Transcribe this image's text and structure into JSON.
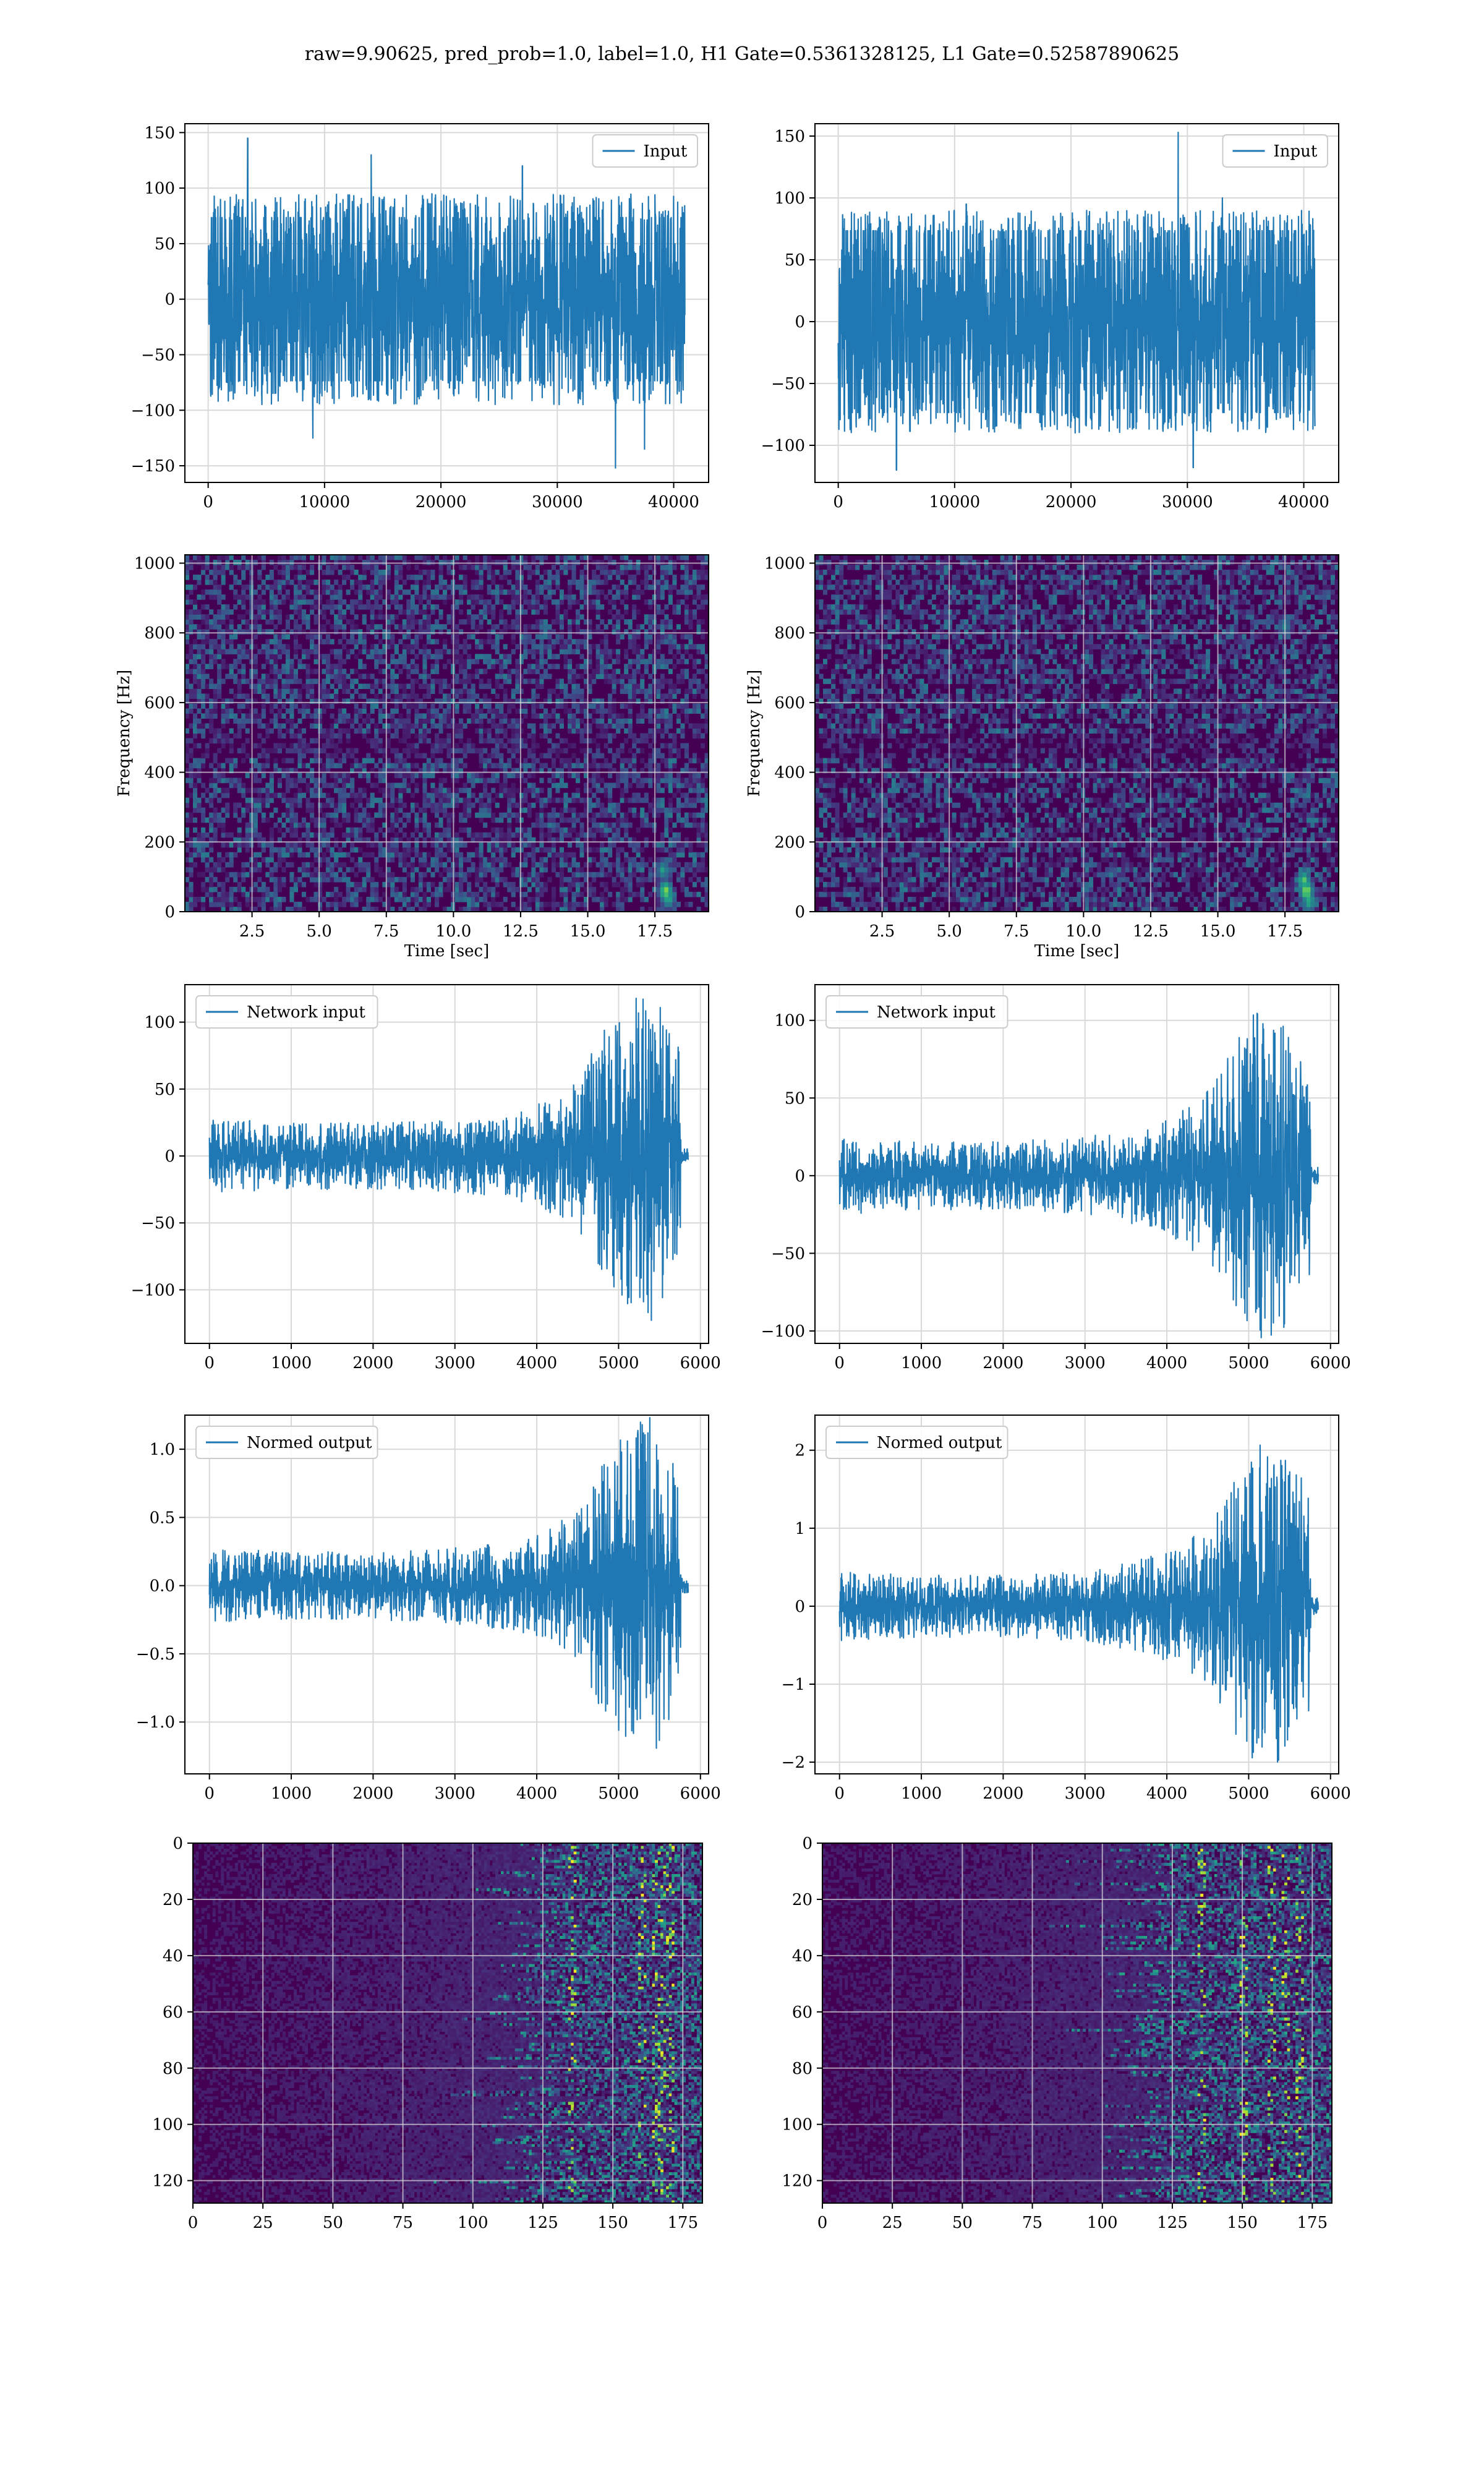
{
  "suptitle": "raw=9.90625, pred_prob=1.0, label=1.0, H1 Gate=0.5361328125, L1 Gate=0.52587890625",
  "colors": {
    "series": "#1f77b4",
    "grid": "#d9d9d9",
    "axes": "#000000",
    "viridis_low": "#440154",
    "viridis_mid": "#21918c",
    "viridis_high": "#fde725"
  },
  "chart_data": [
    {
      "id": "h1-input",
      "type": "line",
      "legend": [
        "Input"
      ],
      "legend_position": "upper right",
      "grid": true,
      "xlim": [
        -2000,
        43000
      ],
      "ylim": [
        -165,
        158
      ],
      "xticks": [
        0,
        10000,
        20000,
        30000,
        40000
      ],
      "xticklabels": [
        "0",
        "10000",
        "20000",
        "30000",
        "40000"
      ],
      "yticks": [
        -150,
        -100,
        -50,
        0,
        50,
        100,
        150
      ],
      "yticklabels": [
        "−150",
        "−100",
        "−50",
        "0",
        "50",
        "100",
        "150"
      ],
      "series": [
        {
          "name": "Input",
          "x_range": [
            0,
            40960
          ],
          "core_amplitude": 70,
          "envelope": [
            [
              0,
              95
            ],
            [
              20480,
              95
            ],
            [
              40960,
              95
            ]
          ],
          "spikes": [
            [
              3400,
              145
            ],
            [
              14000,
              130
            ],
            [
              35000,
              -152
            ],
            [
              37500,
              -135
            ],
            [
              9000,
              -125
            ],
            [
              27000,
              120
            ]
          ]
        }
      ]
    },
    {
      "id": "l1-input",
      "type": "line",
      "legend": [
        "Input"
      ],
      "legend_position": "upper right",
      "grid": true,
      "xlim": [
        -2000,
        43000
      ],
      "ylim": [
        -130,
        160
      ],
      "xticks": [
        0,
        10000,
        20000,
        30000,
        40000
      ],
      "xticklabels": [
        "0",
        "10000",
        "20000",
        "30000",
        "40000"
      ],
      "yticks": [
        -100,
        -50,
        0,
        50,
        100,
        150
      ],
      "yticklabels": [
        "−100",
        "−50",
        "0",
        "50",
        "100",
        "150"
      ],
      "series": [
        {
          "name": "Input",
          "x_range": [
            0,
            40960
          ],
          "core_amplitude": 70,
          "envelope": [
            [
              0,
              90
            ],
            [
              20480,
              90
            ],
            [
              40960,
              90
            ]
          ],
          "spikes": [
            [
              29200,
              153
            ],
            [
              5000,
              -120
            ],
            [
              30500,
              -118
            ],
            [
              33000,
              100
            ],
            [
              11000,
              95
            ]
          ]
        }
      ]
    },
    {
      "id": "h1-spectrogram",
      "type": "heatmap",
      "grid": true,
      "xlabel": "Time [sec]",
      "ylabel": "Frequency [Hz]",
      "xlim": [
        0,
        19.5
      ],
      "ylim": [
        0,
        1024
      ],
      "xticks": [
        2.5,
        5.0,
        7.5,
        10.0,
        12.5,
        15.0,
        17.5
      ],
      "xticklabels": [
        "2.5",
        "5.0",
        "7.5",
        "10.0",
        "12.5",
        "15.0",
        "17.5"
      ],
      "yticks": [
        0,
        200,
        400,
        600,
        800,
        1000
      ],
      "yticklabels": [
        "0",
        "200",
        "400",
        "600",
        "800",
        "1000"
      ],
      "colormap": "viridis",
      "hot_spots": [
        [
          17.9,
          60,
          0.9
        ],
        [
          17.8,
          120,
          0.6
        ],
        [
          18.0,
          40,
          0.7
        ]
      ]
    },
    {
      "id": "l1-spectrogram",
      "type": "heatmap",
      "grid": true,
      "xlabel": "Time [sec]",
      "ylabel": "Frequency [Hz]",
      "xlim": [
        0,
        19.5
      ],
      "ylim": [
        0,
        1024
      ],
      "xticks": [
        2.5,
        5.0,
        7.5,
        10.0,
        12.5,
        15.0,
        17.5
      ],
      "xticklabels": [
        "2.5",
        "5.0",
        "7.5",
        "10.0",
        "12.5",
        "15.0",
        "17.5"
      ],
      "yticks": [
        0,
        200,
        400,
        600,
        800,
        1000
      ],
      "yticklabels": [
        "0",
        "200",
        "400",
        "600",
        "800",
        "1000"
      ],
      "colormap": "viridis",
      "hot_spots": [
        [
          18.3,
          60,
          0.95
        ],
        [
          18.2,
          90,
          0.8
        ],
        [
          18.4,
          30,
          0.7
        ],
        [
          17.5,
          820,
          0.5
        ]
      ]
    },
    {
      "id": "h1-network-input",
      "type": "line",
      "legend": [
        "Network input"
      ],
      "legend_position": "upper left",
      "grid": true,
      "xlim": [
        -300,
        6100
      ],
      "ylim": [
        -140,
        128
      ],
      "xticks": [
        0,
        1000,
        2000,
        3000,
        4000,
        5000,
        6000
      ],
      "xticklabels": [
        "0",
        "1000",
        "2000",
        "3000",
        "4000",
        "5000",
        "6000"
      ],
      "yticks": [
        -100,
        -50,
        0,
        50,
        100
      ],
      "yticklabels": [
        "−100",
        "−50",
        "0",
        "50",
        "100"
      ],
      "series": [
        {
          "name": "Network input",
          "x_range": [
            0,
            5850
          ],
          "end_active": 5760,
          "tail_amplitude": 5,
          "core_ratio": 0.55,
          "envelope": [
            [
              0,
              28
            ],
            [
              1000,
              25
            ],
            [
              2000,
              25
            ],
            [
              3000,
              28
            ],
            [
              3600,
              32
            ],
            [
              4000,
              38
            ],
            [
              4500,
              55
            ],
            [
              4800,
              95
            ],
            [
              5100,
              115
            ],
            [
              5400,
              125
            ],
            [
              5700,
              100
            ],
            [
              5760,
              70
            ]
          ]
        }
      ]
    },
    {
      "id": "l1-network-input",
      "type": "line",
      "legend": [
        "Network input"
      ],
      "legend_position": "upper left",
      "grid": true,
      "xlim": [
        -300,
        6100
      ],
      "ylim": [
        -108,
        123
      ],
      "xticks": [
        0,
        1000,
        2000,
        3000,
        4000,
        5000,
        6000
      ],
      "xticklabels": [
        "0",
        "1000",
        "2000",
        "3000",
        "4000",
        "5000",
        "6000"
      ],
      "yticks": [
        -100,
        -50,
        0,
        50,
        100
      ],
      "yticklabels": [
        "−100",
        "−50",
        "0",
        "50",
        "100"
      ],
      "series": [
        {
          "name": "Network input",
          "x_range": [
            0,
            5850
          ],
          "end_active": 5760,
          "tail_amplitude": 5,
          "core_ratio": 0.55,
          "envelope": [
            [
              0,
              25
            ],
            [
              1000,
              22
            ],
            [
              2000,
              22
            ],
            [
              3000,
              25
            ],
            [
              3500,
              30
            ],
            [
              4000,
              38
            ],
            [
              4500,
              55
            ],
            [
              4800,
              85
            ],
            [
              5100,
              110
            ],
            [
              5400,
              100
            ],
            [
              5700,
              80
            ],
            [
              5760,
              60
            ]
          ]
        }
      ]
    },
    {
      "id": "h1-normed-output",
      "type": "line",
      "legend": [
        "Normed output"
      ],
      "legend_position": "upper left",
      "grid": true,
      "xlim": [
        -300,
        6100
      ],
      "ylim": [
        -1.38,
        1.25
      ],
      "xticks": [
        0,
        1000,
        2000,
        3000,
        4000,
        5000,
        6000
      ],
      "xticklabels": [
        "0",
        "1000",
        "2000",
        "3000",
        "4000",
        "5000",
        "6000"
      ],
      "yticks": [
        -1.0,
        -0.5,
        0.0,
        0.5,
        1.0
      ],
      "yticklabels": [
        "−1.0",
        "−0.5",
        "0.0",
        "0.5",
        "1.0"
      ],
      "series": [
        {
          "name": "Normed output",
          "x_range": [
            0,
            5850
          ],
          "end_active": 5760,
          "tail_amplitude": 0.05,
          "core_ratio": 0.55,
          "envelope": [
            [
              0,
              0.28
            ],
            [
              1000,
              0.25
            ],
            [
              2000,
              0.25
            ],
            [
              3000,
              0.28
            ],
            [
              3600,
              0.32
            ],
            [
              4000,
              0.38
            ],
            [
              4500,
              0.55
            ],
            [
              4800,
              0.95
            ],
            [
              5100,
              1.15
            ],
            [
              5400,
              1.25
            ],
            [
              5700,
              1.0
            ],
            [
              5760,
              0.7
            ]
          ]
        }
      ]
    },
    {
      "id": "l1-normed-output",
      "type": "line",
      "legend": [
        "Normed output"
      ],
      "legend_position": "upper left",
      "grid": true,
      "xlim": [
        -300,
        6100
      ],
      "ylim": [
        -2.15,
        2.45
      ],
      "xticks": [
        0,
        1000,
        2000,
        3000,
        4000,
        5000,
        6000
      ],
      "xticklabels": [
        "0",
        "1000",
        "2000",
        "3000",
        "4000",
        "5000",
        "6000"
      ],
      "yticks": [
        -2,
        -1,
        0,
        1,
        2
      ],
      "yticklabels": [
        "−2",
        "−1",
        "0",
        "1",
        "2"
      ],
      "series": [
        {
          "name": "Normed output",
          "x_range": [
            0,
            5850
          ],
          "end_active": 5760,
          "tail_amplitude": 0.1,
          "core_ratio": 0.55,
          "envelope": [
            [
              0,
              0.45
            ],
            [
              1000,
              0.4
            ],
            [
              2000,
              0.4
            ],
            [
              3000,
              0.45
            ],
            [
              3500,
              0.55
            ],
            [
              4000,
              0.7
            ],
            [
              4500,
              1.0
            ],
            [
              4800,
              1.6
            ],
            [
              5100,
              2.2
            ],
            [
              5400,
              2.0
            ],
            [
              5700,
              1.6
            ],
            [
              5760,
              1.2
            ]
          ]
        }
      ]
    },
    {
      "id": "h1-feature-map",
      "type": "heatmap",
      "grid": true,
      "xlim": [
        0,
        182
      ],
      "ylim": [
        128,
        0
      ],
      "xticks": [
        0,
        25,
        50,
        75,
        100,
        125,
        150,
        175
      ],
      "xticklabels": [
        "0",
        "25",
        "50",
        "75",
        "100",
        "125",
        "150",
        "175"
      ],
      "yticks": [
        0,
        20,
        40,
        60,
        80,
        100,
        120
      ],
      "yticklabels": [
        "0",
        "20",
        "40",
        "60",
        "80",
        "100",
        "120"
      ],
      "colormap": "viridis",
      "activity_onset": 120,
      "peak_columns": [
        135,
        160,
        165,
        168,
        170
      ]
    },
    {
      "id": "l1-feature-map",
      "type": "heatmap",
      "grid": true,
      "xlim": [
        0,
        182
      ],
      "ylim": [
        128,
        0
      ],
      "xticks": [
        0,
        25,
        50,
        75,
        100,
        125,
        150,
        175
      ],
      "xticklabels": [
        "0",
        "25",
        "50",
        "75",
        "100",
        "125",
        "150",
        "175"
      ],
      "yticks": [
        0,
        20,
        40,
        60,
        80,
        100,
        120
      ],
      "yticklabels": [
        "0",
        "20",
        "40",
        "60",
        "80",
        "100",
        "120"
      ],
      "colormap": "viridis",
      "activity_onset": 115,
      "peak_columns": [
        135,
        150,
        160,
        165,
        170
      ]
    }
  ]
}
